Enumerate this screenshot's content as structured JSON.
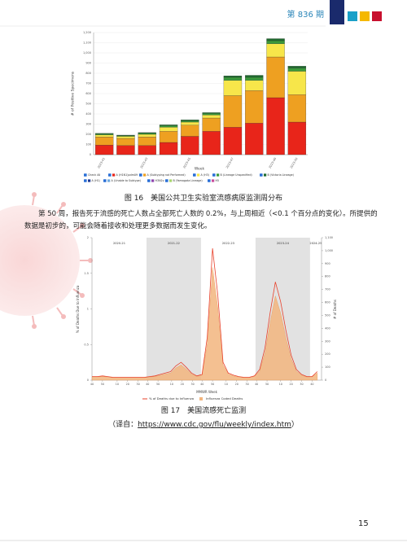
{
  "header": {
    "issue": "第 836 期"
  },
  "figure16": {
    "caption": "图 16　美国公共卫生实验室流感病原监测周分布",
    "chart": {
      "type": "stacked-bar",
      "x_label": "Week",
      "y_label": "# of Positive Specimens",
      "check_all": "Check All",
      "categories": [
        "2023-41",
        null,
        "2023-43",
        null,
        "2023-45",
        null,
        "2023-47",
        null,
        "2023-49",
        "2023-50"
      ],
      "ylim": [
        0,
        1200
      ],
      "yticks": [
        0,
        100,
        200,
        300,
        400,
        500,
        600,
        700,
        800,
        900,
        {
          "value": 1000,
          "label": "1,000"
        },
        {
          "value": 1100,
          "label": "1,100"
        },
        {
          "value": 1200,
          "label": "1,200"
        }
      ],
      "series": [
        {
          "name": "A (H1N1)pdm09",
          "color": "#e8251a",
          "values": [
            95,
            90,
            90,
            120,
            180,
            230,
            270,
            310,
            560,
            320
          ]
        },
        {
          "name": "A (Subtyping not Performed)",
          "color": "#eea021",
          "values": [
            80,
            70,
            85,
            110,
            110,
            130,
            310,
            320,
            400,
            270
          ]
        },
        {
          "name": "A (H3)",
          "color": "#f7e64a",
          "values": [
            20,
            20,
            25,
            40,
            30,
            30,
            150,
            100,
            130,
            230
          ]
        },
        {
          "name": "B (Lineage Unspecified)",
          "color": "#3a9a3a",
          "values": [
            10,
            8,
            12,
            15,
            15,
            15,
            30,
            30,
            30,
            30
          ]
        },
        {
          "name": "B (Victoria Lineage)",
          "color": "#1e6b2e",
          "values": [
            5,
            4,
            5,
            8,
            8,
            8,
            15,
            20,
            20,
            20
          ]
        },
        {
          "name": "A (H1)",
          "color": "#1f3a93",
          "values": [
            0,
            0,
            0,
            0,
            0,
            0,
            0,
            0,
            0,
            0
          ]
        },
        {
          "name": "A (Unable to Subtype)",
          "color": "#6fa8dc",
          "values": [
            0,
            0,
            0,
            0,
            0,
            0,
            0,
            0,
            0,
            0
          ]
        },
        {
          "name": "H3N2v",
          "color": "#8e44ad",
          "values": [
            0,
            0,
            0,
            0,
            0,
            0,
            0,
            0,
            0,
            0
          ]
        },
        {
          "name": "B (Yamagata Lineage)",
          "color": "#a6d56b",
          "values": [
            0,
            0,
            0,
            0,
            0,
            0,
            0,
            0,
            0,
            0
          ]
        },
        {
          "name": "H5",
          "color": "#c94a9b",
          "values": [
            0,
            0,
            0,
            0,
            0,
            0,
            0,
            0,
            0,
            0
          ]
        }
      ]
    }
  },
  "paragraph": "第 50 周，报告死于流感的死亡人数占全部死亡人数的 0.2%，与上周相近（<0.1 个百分点的变化）。所提供的数据是初步的，可能会随着接收和处理更多数据而发生变化。",
  "figure17": {
    "caption": "图 17　美国流感死亡监测",
    "chart": {
      "type": "line-area",
      "x_label": "MMWR Week",
      "y_label": "% of Deaths Due to Influenza",
      "y2_label": "# of Deaths",
      "xlim": [
        0,
        219
      ],
      "xticks": [
        {
          "value": 0,
          "label": "40"
        },
        {
          "value": 10,
          "label": "50"
        },
        {
          "value": 24,
          "label": "10"
        },
        {
          "value": 34,
          "label": "20"
        },
        {
          "value": 44,
          "label": "30"
        },
        {
          "value": 53,
          "label": "40"
        },
        {
          "value": 63,
          "label": "50"
        },
        {
          "value": 76,
          "label": "10"
        },
        {
          "value": 86,
          "label": "20"
        },
        {
          "value": 96,
          "label": "30"
        },
        {
          "value": 105,
          "label": "40"
        },
        {
          "value": 115,
          "label": "50"
        },
        {
          "value": 128,
          "label": "10"
        },
        {
          "value": 138,
          "label": "20"
        },
        {
          "value": 148,
          "label": "30"
        },
        {
          "value": 157,
          "label": "40"
        },
        {
          "value": 167,
          "label": "50"
        },
        {
          "value": 180,
          "label": "10"
        },
        {
          "value": 190,
          "label": "20"
        },
        {
          "value": 200,
          "label": "30"
        },
        {
          "value": 210,
          "label": "40"
        }
      ],
      "ylim": [
        0,
        2
      ],
      "yticks": [
        0,
        0.5,
        1,
        1.5,
        2
      ],
      "y2lim": [
        0,
        1100
      ],
      "y2ticks": [
        0,
        100,
        200,
        300,
        400,
        500,
        600,
        700,
        800,
        900,
        {
          "value": 1000,
          "label": "1,000"
        },
        {
          "value": 1100,
          "label": "1,100"
        }
      ],
      "seasons": [
        {
          "name": "2020-21",
          "start": 0,
          "end": 52,
          "shaded": false
        },
        {
          "name": "2021-22",
          "start": 52,
          "end": 104,
          "shaded": true
        },
        {
          "name": "2022-23",
          "start": 104,
          "end": 156,
          "shaded": false
        },
        {
          "name": "2023-24",
          "start": 156,
          "end": 208,
          "shaded": true
        },
        {
          "name": "2024-25",
          "start": 208,
          "end": 219,
          "shaded": false
        }
      ],
      "x": [
        0,
        5,
        10,
        15,
        20,
        25,
        30,
        35,
        40,
        45,
        50,
        55,
        60,
        65,
        70,
        75,
        80,
        85,
        90,
        95,
        100,
        105,
        110,
        115,
        120,
        125,
        130,
        135,
        140,
        145,
        150,
        155,
        160,
        165,
        170,
        175,
        180,
        185,
        190,
        195,
        200,
        205,
        210,
        215
      ],
      "series": [
        {
          "name": "Influenza Coded Deaths",
          "color": "#f2b57e",
          "axis": "y2",
          "values": [
            24,
            24,
            28,
            24,
            19,
            19,
            19,
            19,
            19,
            19,
            19,
            24,
            28,
            38,
            47,
            56,
            94,
            118,
            85,
            47,
            28,
            38,
            282,
            870,
            564,
            118,
            47,
            33,
            24,
            19,
            19,
            28,
            70,
            212,
            447,
            650,
            517,
            329,
            165,
            70,
            38,
            24,
            24,
            56
          ]
        },
        {
          "name": "% of Deaths due to Influenza",
          "color": "#e8402a",
          "values": [
            0.05,
            0.05,
            0.06,
            0.05,
            0.04,
            0.04,
            0.04,
            0.04,
            0.04,
            0.04,
            0.04,
            0.05,
            0.06,
            0.08,
            0.1,
            0.12,
            0.2,
            0.25,
            0.18,
            0.1,
            0.06,
            0.08,
            0.6,
            1.85,
            1.2,
            0.25,
            0.1,
            0.07,
            0.05,
            0.04,
            0.04,
            0.06,
            0.15,
            0.45,
            0.95,
            1.38,
            1.1,
            0.7,
            0.35,
            0.15,
            0.08,
            0.05,
            0.05,
            0.12
          ]
        }
      ]
    }
  },
  "source": {
    "prefix": "（译自：",
    "link": "https://www.cdc.gov/flu/weekly/index.htm",
    "suffix": "）"
  },
  "page_number": "15"
}
